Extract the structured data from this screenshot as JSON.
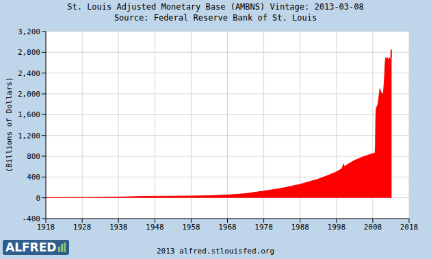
{
  "chart_data": {
    "type": "area",
    "title": "St. Louis Adjusted Monetary Base (AMBNS) Vintage: 2013-03-08",
    "subtitle": "Source: Federal Reserve Bank of St. Louis",
    "ylabel": "(Billions of Dollars)",
    "annotations": [
      "ALFRED",
      "2013 alfred.stlouisfed.org"
    ],
    "x": [
      1918,
      1923,
      1928,
      1933,
      1938,
      1943,
      1948,
      1953,
      1958,
      1963,
      1968,
      1973,
      1978,
      1983,
      1988,
      1993,
      1996,
      1998,
      1999.5,
      1999.95,
      2000.2,
      2001,
      2003,
      2005,
      2007,
      2008.6,
      2008.72,
      2008.8,
      2008.9,
      2009.1,
      2009.4,
      2009.8,
      2009.95,
      2010.2,
      2010.5,
      2010.8,
      2010.95,
      2011.2,
      2011.45,
      2011.6,
      2011.8,
      2012.0,
      2012.3,
      2012.6,
      2012.9,
      2013.0,
      2013.1,
      2013.18
    ],
    "values": [
      5,
      6,
      7,
      9,
      15,
      25,
      30,
      32,
      35,
      40,
      55,
      80,
      130,
      185,
      260,
      360,
      440,
      500,
      560,
      650,
      600,
      640,
      720,
      780,
      830,
      860,
      1000,
      1500,
      1700,
      1750,
      1800,
      2000,
      2100,
      2050,
      2000,
      2000,
      2050,
      2300,
      2650,
      2700,
      2650,
      2700,
      2650,
      2700,
      2650,
      2850,
      2700,
      2850
    ],
    "color": "#ff0000",
    "xlim": [
      1918,
      2018
    ],
    "xticks": [
      1918,
      1928,
      1938,
      1948,
      1958,
      1968,
      1978,
      1988,
      1998,
      2008,
      2018
    ],
    "ylim": [
      -400,
      3200
    ],
    "yticks": [
      -400,
      0,
      400,
      800,
      {
        "value": 1200,
        "label": "1,200"
      },
      {
        "value": 1600,
        "label": "1,600"
      },
      {
        "value": 2000,
        "label": "2,000"
      },
      {
        "value": 2400,
        "label": "2,400"
      },
      {
        "value": 2800,
        "label": "2,800"
      },
      {
        "value": 3200,
        "label": "3,200"
      }
    ],
    "grid": true
  }
}
